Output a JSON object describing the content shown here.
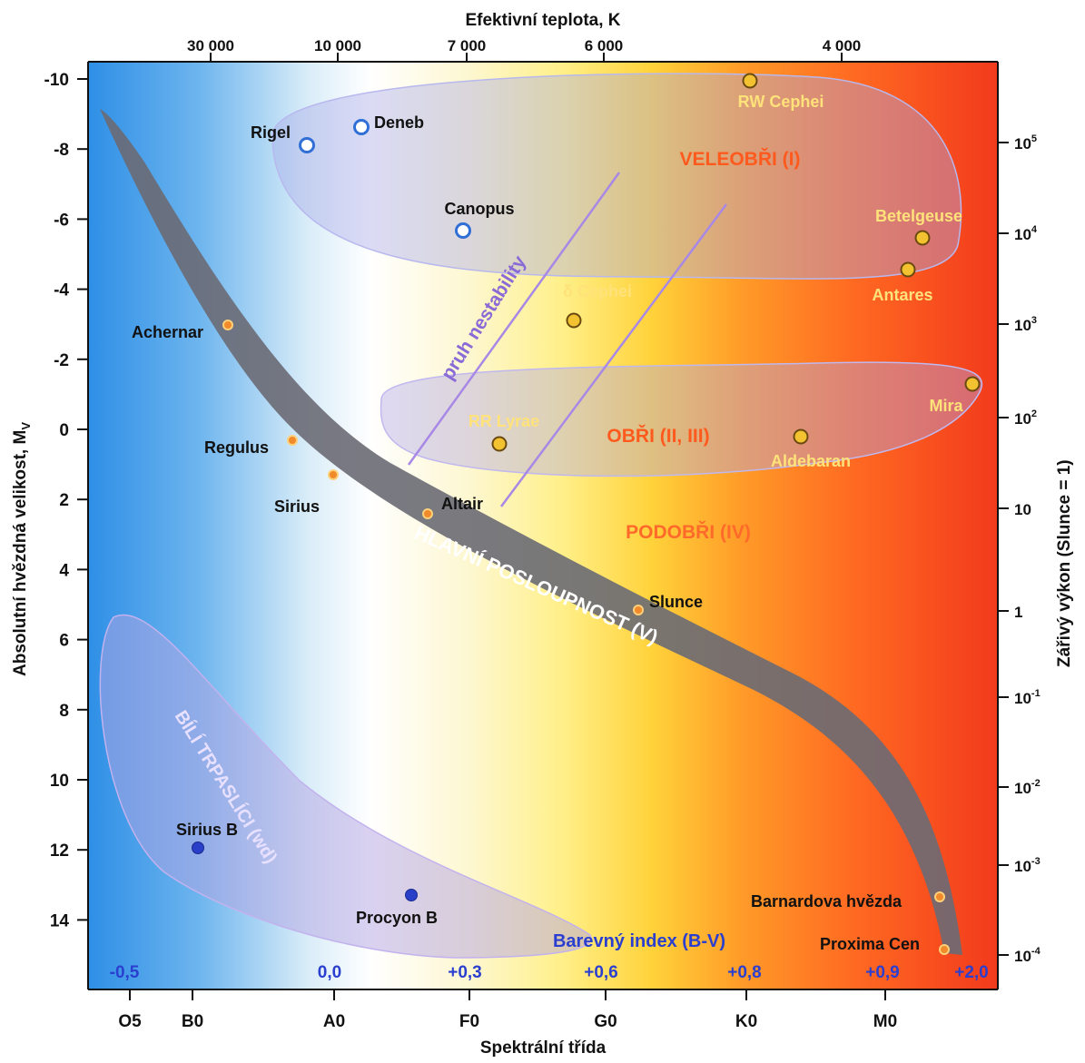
{
  "chart_data": {
    "type": "scatter",
    "title": "",
    "xlabel": "Spektrální třída",
    "xlabel_top": "Efektivní teplota, K",
    "ylabel": "Absolutní hvězdná velikost, M",
    "ylabel_sub": "V",
    "ylabel_right": "Zářivý výkon (Slunce = 1)",
    "color_index_label": "Barevný index (B-V)",
    "x_ticks": [
      "O5",
      "B0",
      "A0",
      "F0",
      "G0",
      "K0",
      "M0"
    ],
    "temperature_ticks": [
      "30 000",
      "10 000",
      "7 000",
      "6 000",
      "4 000"
    ],
    "color_index_ticks": [
      "-0,5",
      "0,0",
      "+0,3",
      "+0,6",
      "+0,8",
      "+0,9",
      "+2,0"
    ],
    "y_ticks": [
      "-10",
      "-8",
      "-6",
      "-4",
      "-2",
      "0",
      "2",
      "4",
      "6",
      "8",
      "10",
      "12",
      "14"
    ],
    "ylim": [
      15.5,
      -10.5
    ],
    "luminosity_ticks": [
      {
        "base": "10",
        "exp": "5"
      },
      {
        "base": "10",
        "exp": "4"
      },
      {
        "base": "10",
        "exp": "3"
      },
      {
        "base": "10",
        "exp": "2"
      },
      {
        "base": "10",
        "exp": ""
      },
      {
        "base": "1",
        "exp": ""
      },
      {
        "base": "10",
        "exp": "-1"
      },
      {
        "base": "10",
        "exp": "-2"
      },
      {
        "base": "10",
        "exp": "-3"
      },
      {
        "base": "10",
        "exp": "-4"
      }
    ],
    "regions": {
      "supergiants": "VELEOBŘI (I)",
      "giants": "OBŘI (II, III)",
      "subgiants": "PODOBŘI (IV)",
      "main_sequence": "HLAVNÍ POSLOUPNOST (V)",
      "white_dwarfs": "BÍLÍ TRPASLÍCI (wd)",
      "instability_strip": "pruh nestability"
    },
    "stars": [
      {
        "name": "RW Cephei",
        "spectral": "K0",
        "mag": -10,
        "kind": "yellow"
      },
      {
        "name": "Deneb",
        "spectral": "A2",
        "mag": -8.6,
        "kind": "hot"
      },
      {
        "name": "Rigel",
        "spectral": "B8",
        "mag": -8.1,
        "kind": "hot"
      },
      {
        "name": "Canopus",
        "spectral": "F0",
        "mag": -5.7,
        "kind": "hot"
      },
      {
        "name": "Betelgeuse",
        "spectral": "M2",
        "mag": -5.5,
        "kind": "yellow"
      },
      {
        "name": "Antares",
        "spectral": "M1",
        "mag": -4.5,
        "kind": "yellow"
      },
      {
        "name": "δ Cephei",
        "spectral": "G4",
        "mag": -3,
        "kind": "yellow"
      },
      {
        "name": "Achernar",
        "spectral": "B3",
        "mag": -2.9,
        "kind": "orange"
      },
      {
        "name": "Mira",
        "spectral": "M5",
        "mag": -1.2,
        "kind": "yellow"
      },
      {
        "name": "Regulus",
        "spectral": "B7",
        "mag": 0.4,
        "kind": "orange"
      },
      {
        "name": "RR Lyrae",
        "spectral": "F5",
        "mag": 0.5,
        "kind": "yellow"
      },
      {
        "name": "Aldebaran",
        "spectral": "K5",
        "mag": 0.3,
        "kind": "yellow"
      },
      {
        "name": "Sirius",
        "spectral": "A0",
        "mag": 1.4,
        "kind": "orange"
      },
      {
        "name": "Altair",
        "spectral": "A7",
        "mag": 2.5,
        "kind": "orange"
      },
      {
        "name": "Slunce",
        "spectral": "G2",
        "mag": 5.2,
        "kind": "orange"
      },
      {
        "name": "Sirius B",
        "spectral": "B0",
        "mag": 11.7,
        "kind": "blue"
      },
      {
        "name": "Procyon B",
        "spectral": "A8",
        "mag": 13,
        "kind": "blue"
      },
      {
        "name": "Barnardova hvězda",
        "spectral": "M4",
        "mag": 13.2,
        "kind": "orange"
      },
      {
        "name": "Proxima Cen",
        "spectral": "M5",
        "mag": 15.2,
        "kind": "orange"
      }
    ],
    "colors": {
      "hot_star": "#2f6fd6",
      "yellow_star": "#f2c230",
      "orange_star": "#f08a2a",
      "blue_dwarf": "#2a3fc8",
      "region_label": "#ff5a1e",
      "star_label_warm": "#ffe27a",
      "axis_text": "#111111"
    }
  }
}
